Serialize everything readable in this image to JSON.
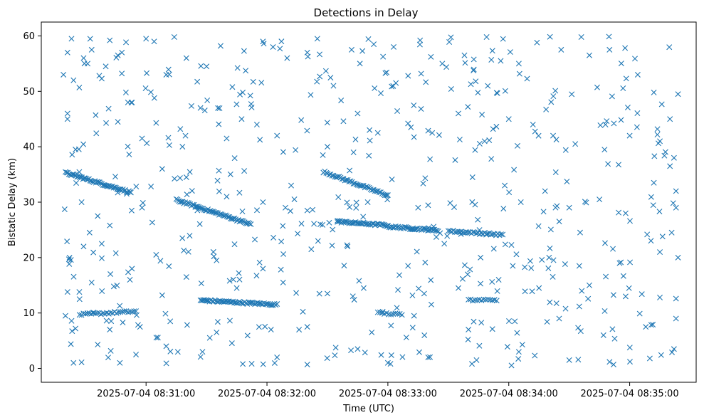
{
  "chart_data": {
    "type": "scatter",
    "title": "Detections in Delay",
    "xlabel": "Time (UTC)",
    "ylabel": "Bistatic Delay (km)",
    "x_tick_labels": [
      "2025-07-04 08:31:00",
      "2025-07-04 08:32:00",
      "2025-07-04 08:33:00",
      "2025-07-04 08:34:00",
      "2025-07-04 08:35:00"
    ],
    "y_tick_labels": [
      "0",
      "10",
      "20",
      "30",
      "40",
      "50",
      "60"
    ],
    "xlim": [
      "2025-07-04 08:30:08",
      "2025-07-04 08:35:33"
    ],
    "ylim": [
      -2.5,
      62.5
    ],
    "grid": false,
    "marker": "x",
    "color": "#1f77b4",
    "tracks": [
      {
        "x": [
          "2025-07-04 08:30:20",
          "2025-07-04 08:30:52"
        ],
        "y": [
          35.3,
          31.8
        ],
        "points": 56
      },
      {
        "x": [
          "2025-07-04 08:30:27",
          "2025-07-04 08:30:55"
        ],
        "y": [
          9.7,
          10.3
        ],
        "points": 30
      },
      {
        "x": [
          "2025-07-04 08:31:15",
          "2025-07-04 08:31:52"
        ],
        "y": [
          30.4,
          26.0
        ],
        "points": 60
      },
      {
        "x": [
          "2025-07-04 08:31:27",
          "2025-07-04 08:32:05"
        ],
        "y": [
          12.3,
          11.5
        ],
        "points": 60
      },
      {
        "x": [
          "2025-07-04 08:32:28",
          "2025-07-04 08:33:00"
        ],
        "y": [
          35.5,
          31.2
        ],
        "points": 46
      },
      {
        "x": [
          "2025-07-04 08:32:35",
          "2025-07-04 08:33:00"
        ],
        "y": [
          26.5,
          25.8
        ],
        "points": 40
      },
      {
        "x": [
          "2025-07-04 08:33:00",
          "2025-07-04 08:33:25"
        ],
        "y": [
          25.6,
          24.9
        ],
        "points": 40
      },
      {
        "x": [
          "2025-07-04 08:33:30",
          "2025-07-04 08:33:57"
        ],
        "y": [
          24.8,
          24.1
        ],
        "points": 34
      },
      {
        "x": [
          "2025-07-04 08:33:40",
          "2025-07-04 08:33:54"
        ],
        "y": [
          12.3,
          12.4
        ],
        "points": 14
      },
      {
        "x": [
          "2025-07-04 08:32:55",
          "2025-07-04 08:33:07"
        ],
        "y": [
          10.0,
          9.7
        ],
        "points": 12
      }
    ],
    "scattered_points": [
      [
        "2025-07-04 08:30:19",
        53.0
      ],
      [
        "2025-07-04 08:30:21",
        46.0
      ],
      [
        "2025-07-04 08:30:21",
        45.0
      ],
      [
        "2025-07-04 08:30:21",
        57.0
      ],
      [
        "2025-07-04 08:30:23",
        59.5
      ],
      [
        "2025-07-04 08:30:24",
        52.0
      ],
      [
        "2025-07-04 08:30:29",
        56.0
      ],
      [
        "2025-07-04 08:30:31",
        55.0
      ],
      [
        "2025-07-04 08:30:33",
        57.5
      ],
      [
        "2025-07-04 08:30:38",
        52.3
      ],
      [
        "2025-07-04 08:30:40",
        54.5
      ],
      [
        "2025-07-04 08:30:42",
        59.2
      ],
      [
        "2025-07-04 08:30:46",
        56.5
      ],
      [
        "2025-07-04 08:30:48",
        57.0
      ],
      [
        "2025-07-04 08:30:50",
        49.8
      ],
      [
        "2025-07-04 08:30:51",
        48.0
      ],
      [
        "2025-07-04 08:31:00",
        59.5
      ],
      [
        "2025-07-04 08:31:04",
        59.0
      ],
      [
        "2025-07-04 08:31:10",
        53.0
      ],
      [
        "2025-07-04 08:31:14",
        59.8
      ],
      [
        "2025-07-04 08:31:20",
        56.0
      ],
      [
        "2025-07-04 08:31:30",
        54.5
      ],
      [
        "2025-07-04 08:31:37",
        58.2
      ],
      [
        "2025-07-04 08:31:48",
        49.8
      ],
      [
        "2025-07-04 08:31:58",
        59.0
      ],
      [
        "2025-07-04 08:32:03",
        58.0
      ],
      [
        "2025-07-04 08:32:10",
        56.0
      ],
      [
        "2025-07-04 08:32:20",
        57.0
      ],
      [
        "2025-07-04 08:32:25",
        59.5
      ],
      [
        "2025-07-04 08:32:33",
        51.0
      ],
      [
        "2025-07-04 08:32:42",
        57.5
      ],
      [
        "2025-07-04 08:32:53",
        58.5
      ],
      [
        "2025-07-04 08:33:04",
        51.5
      ],
      [
        "2025-07-04 08:33:16",
        59.2
      ],
      [
        "2025-07-04 08:33:27",
        55.0
      ],
      [
        "2025-07-04 08:33:38",
        56.5
      ],
      [
        "2025-07-04 08:33:49",
        59.8
      ],
      [
        "2025-07-04 08:33:56",
        55.5
      ],
      [
        "2025-07-04 08:34:05",
        55.0
      ],
      [
        "2025-07-04 08:34:14",
        58.8
      ],
      [
        "2025-07-04 08:34:26",
        57.5
      ],
      [
        "2025-07-04 08:34:36",
        59.8
      ],
      [
        "2025-07-04 08:34:40",
        56.5
      ],
      [
        "2025-07-04 08:34:50",
        57.5
      ],
      [
        "2025-07-04 08:35:04",
        53.0
      ],
      [
        "2025-07-04 08:35:12",
        49.8
      ],
      [
        "2025-07-04 08:35:20",
        45.0
      ],
      [
        "2025-07-04 08:35:24",
        49.5
      ],
      [
        "2025-07-04 08:30:25",
        39.5
      ],
      [
        "2025-07-04 08:30:35",
        45.7
      ],
      [
        "2025-07-04 08:30:46",
        44.5
      ],
      [
        "2025-07-04 08:30:58",
        41.5
      ],
      [
        "2025-07-04 08:31:05",
        44.3
      ],
      [
        "2025-07-04 08:31:17",
        43.2
      ],
      [
        "2025-07-04 08:31:27",
        47.0
      ],
      [
        "2025-07-04 08:31:40",
        41.5
      ],
      [
        "2025-07-04 08:31:55",
        44.0
      ],
      [
        "2025-07-04 08:32:05",
        42.0
      ],
      [
        "2025-07-04 08:32:17",
        44.8
      ],
      [
        "2025-07-04 08:32:30",
        40.0
      ],
      [
        "2025-07-04 08:32:45",
        46.0
      ],
      [
        "2025-07-04 08:32:55",
        42.5
      ],
      [
        "2025-07-04 08:33:10",
        44.2
      ],
      [
        "2025-07-04 08:33:22",
        42.5
      ],
      [
        "2025-07-04 08:33:35",
        46.0
      ],
      [
        "2025-07-04 08:33:48",
        41.0
      ],
      [
        "2025-07-04 08:34:00",
        45.0
      ],
      [
        "2025-07-04 08:34:12",
        44.0
      ],
      [
        "2025-07-04 08:34:22",
        42.0
      ],
      [
        "2025-07-04 08:34:33",
        40.5
      ],
      [
        "2025-07-04 08:34:48",
        44.0
      ],
      [
        "2025-07-04 08:35:00",
        42.0
      ],
      [
        "2025-07-04 08:35:15",
        41.0
      ],
      [
        "2025-07-04 08:35:22",
        38.0
      ],
      [
        "2025-07-04 08:30:28",
        30.0
      ],
      [
        "2025-07-04 08:30:36",
        27.5
      ],
      [
        "2025-07-04 08:30:42",
        25.8
      ],
      [
        "2025-07-04 08:30:58",
        29.0
      ],
      [
        "2025-07-04 08:31:08",
        36.0
      ],
      [
        "2025-07-04 08:31:20",
        34.5
      ],
      [
        "2025-07-04 08:31:40",
        31.0
      ],
      [
        "2025-07-04 08:31:58",
        30.0
      ],
      [
        "2025-07-04 08:32:12",
        33.0
      ],
      [
        "2025-07-04 08:32:20",
        28.5
      ],
      [
        "2025-07-04 08:32:50",
        30.0
      ],
      [
        "2025-07-04 08:33:15",
        29.0
      ],
      [
        "2025-07-04 08:33:42",
        34.5
      ],
      [
        "2025-07-04 08:33:58",
        33.0
      ],
      [
        "2025-07-04 08:34:06",
        30.0
      ],
      [
        "2025-07-04 08:34:18",
        32.0
      ],
      [
        "2025-07-04 08:34:30",
        29.0
      ],
      [
        "2025-07-04 08:34:45",
        30.5
      ],
      [
        "2025-07-04 08:34:58",
        28.0
      ],
      [
        "2025-07-04 08:35:12",
        33.5
      ],
      [
        "2025-07-04 08:35:20",
        36.5
      ],
      [
        "2025-07-04 08:35:23",
        32.0
      ],
      [
        "2025-07-04 08:35:23",
        29.0
      ],
      [
        "2025-07-04 08:30:22",
        20.0
      ],
      [
        "2025-07-04 08:30:29",
        22.0
      ],
      [
        "2025-07-04 08:30:38",
        22.5
      ],
      [
        "2025-07-04 08:30:45",
        20.8
      ],
      [
        "2025-07-04 08:30:53",
        18.0
      ],
      [
        "2025-07-04 08:31:05",
        20.5
      ],
      [
        "2025-07-04 08:31:18",
        23.5
      ],
      [
        "2025-07-04 08:31:35",
        19.5
      ],
      [
        "2025-07-04 08:31:58",
        18.0
      ],
      [
        "2025-07-04 08:32:22",
        21.5
      ],
      [
        "2025-07-04 08:32:40",
        22.0
      ],
      [
        "2025-07-04 08:33:10",
        18.5
      ],
      [
        "2025-07-04 08:33:28",
        22.5
      ],
      [
        "2025-07-04 08:33:46",
        20.0
      ],
      [
        "2025-07-04 08:34:02",
        18.5
      ],
      [
        "2025-07-04 08:34:20",
        20.0
      ],
      [
        "2025-07-04 08:34:35",
        18.5
      ],
      [
        "2025-07-04 08:34:55",
        19.0
      ],
      [
        "2025-07-04 08:35:15",
        21.0
      ],
      [
        "2025-07-04 08:35:24",
        20.0
      ],
      [
        "2025-07-04 08:30:21",
        13.8
      ],
      [
        "2025-07-04 08:30:27",
        12.5
      ],
      [
        "2025-07-04 08:30:33",
        15.5
      ],
      [
        "2025-07-04 08:30:44",
        14.8
      ],
      [
        "2025-07-04 08:30:52",
        16.0
      ],
      [
        "2025-07-04 08:31:08",
        13.2
      ],
      [
        "2025-07-04 08:31:20",
        16.5
      ],
      [
        "2025-07-04 08:31:45",
        14.5
      ],
      [
        "2025-07-04 08:32:08",
        15.5
      ],
      [
        "2025-07-04 08:32:30",
        13.5
      ],
      [
        "2025-07-04 08:32:48",
        14.5
      ],
      [
        "2025-07-04 08:33:18",
        13.5
      ],
      [
        "2025-07-04 08:33:35",
        14.5
      ],
      [
        "2025-07-04 08:33:55",
        16.0
      ],
      [
        "2025-07-04 08:34:15",
        14.5
      ],
      [
        "2025-07-04 08:34:40",
        15.0
      ],
      [
        "2025-07-04 08:34:58",
        13.0
      ],
      [
        "2025-07-04 08:35:15",
        12.8
      ],
      [
        "2025-07-04 08:35:23",
        12.6
      ],
      [
        "2025-07-04 08:30:20",
        9.5
      ],
      [
        "2025-07-04 08:30:25",
        7.2
      ],
      [
        "2025-07-04 08:30:42",
        7.0
      ],
      [
        "2025-07-04 08:30:57",
        7.5
      ],
      [
        "2025-07-04 08:31:12",
        8.5
      ],
      [
        "2025-07-04 08:31:35",
        6.5
      ],
      [
        "2025-07-04 08:32:02",
        7.0
      ],
      [
        "2025-07-04 08:32:20",
        7.5
      ],
      [
        "2025-07-04 08:32:52",
        6.5
      ],
      [
        "2025-07-04 08:33:13",
        9.5
      ],
      [
        "2025-07-04 08:33:40",
        7.0
      ],
      [
        "2025-07-04 08:34:03",
        8.5
      ],
      [
        "2025-07-04 08:34:25",
        9.0
      ],
      [
        "2025-07-04 08:34:47",
        6.0
      ],
      [
        "2025-07-04 08:35:08",
        7.5
      ],
      [
        "2025-07-04 08:35:23",
        9.0
      ],
      [
        "2025-07-04 08:30:24",
        1.0
      ],
      [
        "2025-07-04 08:30:28",
        1.1
      ],
      [
        "2025-07-04 08:30:36",
        4.3
      ],
      [
        "2025-07-04 08:30:47",
        1.0
      ],
      [
        "2025-07-04 08:30:55",
        2.5
      ],
      [
        "2025-07-04 08:31:10",
        4.0
      ],
      [
        "2025-07-04 08:31:28",
        3.0
      ],
      [
        "2025-07-04 08:31:48",
        0.8
      ],
      [
        "2025-07-04 08:32:05",
        2.0
      ],
      [
        "2025-07-04 08:32:20",
        0.7
      ],
      [
        "2025-07-04 08:32:45",
        3.5
      ],
      [
        "2025-07-04 08:33:00",
        1.0
      ],
      [
        "2025-07-04 08:33:20",
        2.0
      ],
      [
        "2025-07-04 08:33:44",
        1.5
      ],
      [
        "2025-07-04 08:34:05",
        3.0
      ],
      [
        "2025-07-04 08:34:30",
        1.5
      ],
      [
        "2025-07-04 08:34:52",
        0.7
      ],
      [
        "2025-07-04 08:35:10",
        1.8
      ],
      [
        "2025-07-04 08:35:21",
        2.9
      ],
      [
        "2025-07-04 08:35:22",
        3.5
      ]
    ],
    "random_background_points": 420,
    "random_background_range": {
      "x": [
        "2025-07-04 08:30:19",
        "2025-07-04 08:35:23"
      ],
      "y": [
        0.5,
        60
      ]
    }
  }
}
